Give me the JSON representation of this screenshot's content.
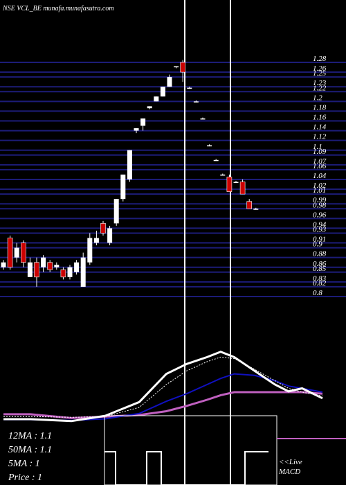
{
  "chart_data": [
    {
      "type": "candlestick",
      "title": "NSE VCL_BE munafa.munafasutra.com",
      "up_color": "#ffffff",
      "down_color": "#cc0000",
      "grid_color": "#1c1c78",
      "grid": true,
      "ylim": [
        0.8,
        1.28
      ],
      "yticks": [
        1.28,
        1.26,
        1.25,
        1.23,
        1.22,
        1.2,
        1.18,
        1.16,
        1.14,
        1.12,
        1.1,
        1.09,
        1.07,
        1.06,
        1.04,
        1.02,
        1.01,
        0.99,
        0.98,
        0.96,
        0.94,
        0.93,
        0.91,
        0.9,
        0.88,
        0.86,
        0.85,
        0.83,
        0.82,
        0.8
      ],
      "candles": [
        {
          "open": 0.86,
          "high": 0.875,
          "low": 0.855,
          "close": 0.87
        },
        {
          "open": 0.92,
          "high": 0.925,
          "low": 0.855,
          "close": 0.86
        },
        {
          "open": 0.88,
          "high": 0.91,
          "low": 0.87,
          "close": 0.9
        },
        {
          "open": 0.91,
          "high": 0.915,
          "low": 0.86,
          "close": 0.87
        },
        {
          "open": 0.84,
          "high": 0.88,
          "low": 0.84,
          "close": 0.87
        },
        {
          "open": 0.87,
          "high": 0.88,
          "low": 0.82,
          "close": 0.84
        },
        {
          "open": 0.86,
          "high": 0.885,
          "low": 0.85,
          "close": 0.88
        },
        {
          "open": 0.87,
          "high": 0.875,
          "low": 0.85,
          "close": 0.855
        },
        {
          "open": 0.86,
          "high": 0.87,
          "low": 0.855,
          "close": 0.865
        },
        {
          "open": 0.855,
          "high": 0.86,
          "low": 0.835,
          "close": 0.84
        },
        {
          "open": 0.84,
          "high": 0.865,
          "low": 0.835,
          "close": 0.86
        },
        {
          "open": 0.85,
          "high": 0.875,
          "low": 0.845,
          "close": 0.87
        },
        {
          "open": 0.82,
          "high": 0.89,
          "low": 0.82,
          "close": 0.88
        },
        {
          "open": 0.87,
          "high": 0.93,
          "low": 0.865,
          "close": 0.92
        },
        {
          "open": 0.91,
          "high": 0.935,
          "low": 0.905,
          "close": 0.92
        },
        {
          "open": 0.95,
          "high": 0.955,
          "low": 0.925,
          "close": 0.93
        },
        {
          "open": 0.91,
          "high": 0.945,
          "low": 0.905,
          "close": 0.94
        },
        {
          "open": 0.95,
          "high": 1.0,
          "low": 0.945,
          "close": 1.0
        },
        {
          "open": 1.0,
          "high": 1.05,
          "low": 0.995,
          "close": 1.05
        },
        {
          "open": 1.04,
          "high": 1.1,
          "low": 1.035,
          "close": 1.1
        },
        {
          "open": 1.14,
          "high": 1.145,
          "low": 1.135,
          "close": 1.145
        },
        {
          "open": 1.15,
          "high": 1.165,
          "low": 1.14,
          "close": 1.165
        },
        {
          "open": 1.186,
          "high": 1.19,
          "low": 1.184,
          "close": 1.19
        },
        {
          "open": 1.2,
          "high": 1.21,
          "low": 1.2,
          "close": 1.21
        },
        {
          "open": 1.21,
          "high": 1.23,
          "low": 1.21,
          "close": 1.23
        },
        {
          "open": 1.23,
          "high": 1.255,
          "low": 1.23,
          "close": 1.25
        },
        {
          "open": 1.27,
          "high": 1.272,
          "low": 1.268,
          "close": 1.272
        },
        {
          "open": 1.28,
          "high": 1.285,
          "low": 1.24,
          "close": 1.26
        },
        {
          "open": 1.228,
          "high": 1.23,
          "low": 1.226,
          "close": 1.228
        },
        {
          "open": 1.2,
          "high": 1.202,
          "low": 1.198,
          "close": 1.2
        },
        {
          "open": 1.165,
          "high": 1.167,
          "low": 1.163,
          "close": 1.165
        },
        {
          "open": 1.11,
          "high": 1.112,
          "low": 1.108,
          "close": 1.11
        },
        {
          "open": 1.08,
          "high": 1.082,
          "low": 1.078,
          "close": 1.08
        },
        {
          "open": 1.05,
          "high": 1.052,
          "low": 1.048,
          "close": 1.05
        },
        {
          "open": 1.045,
          "high": 1.05,
          "low": 1.015,
          "close": 1.015
        },
        {
          "open": 1.035,
          "high": 1.037,
          "low": 1.033,
          "close": 1.035
        },
        {
          "open": 1.035,
          "high": 1.04,
          "low": 1.01,
          "close": 1.01
        },
        {
          "open": 0.995,
          "high": 1.0,
          "low": 0.98,
          "close": 0.98
        },
        {
          "open": 0.98,
          "high": 0.982,
          "low": 0.978,
          "close": 0.98
        }
      ]
    },
    {
      "type": "line",
      "ylim": [
        0,
        100
      ],
      "x": [
        0,
        4,
        10,
        15,
        20,
        24,
        27,
        30,
        32,
        34,
        37,
        40,
        42,
        44,
        47
      ],
      "xlim": [
        0,
        47
      ],
      "series": [
        {
          "color": "#c060c0",
          "width": 3,
          "values": [
            11,
            11,
            6,
            8,
            10,
            15,
            22,
            30,
            36,
            40,
            40,
            40,
            40,
            40,
            38
          ]
        },
        {
          "color": "#1010c0",
          "width": 2,
          "values": [
            4,
            4,
            3,
            5,
            12,
            28,
            38,
            50,
            58,
            64,
            62,
            55,
            48,
            45,
            40
          ]
        },
        {
          "color": "#ffffff",
          "width": 1,
          "dash": true,
          "values": [
            8,
            8,
            7,
            8,
            20,
            50,
            68,
            80,
            86,
            84,
            70,
            55,
            45,
            40,
            35
          ]
        },
        {
          "color": "#ffffff",
          "width": 3,
          "values": [
            4.5,
            4.5,
            2,
            9,
            27,
            64,
            77,
            86,
            93,
            86,
            68,
            50,
            41,
            45,
            32
          ]
        }
      ],
      "labels": [
        "12MA : 1.1",
        "50MA : 1.1",
        "5MA : 1",
        "Price  : 1"
      ],
      "annotations": [
        "<<Live",
        "MACD"
      ]
    }
  ]
}
